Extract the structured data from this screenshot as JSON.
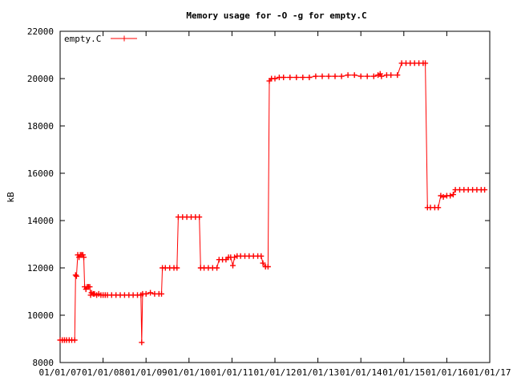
{
  "chart_data": {
    "type": "line",
    "title": "Memory usage for -O -g for empty.C",
    "xlabel": "",
    "ylabel": "kB",
    "ylim": [
      8000,
      22000
    ],
    "yticks": [
      8000,
      10000,
      12000,
      14000,
      16000,
      18000,
      20000,
      22000
    ],
    "xticks": [
      "01/01/07",
      "01/01/08",
      "01/01/09",
      "01/01/10",
      "01/01/11",
      "01/01/12",
      "01/01/13",
      "01/01/14",
      "01/01/15",
      "01/01/16",
      "01/01/17"
    ],
    "xlim_index": [
      0,
      10
    ],
    "grid": false,
    "legend_position": "top-left",
    "series": [
      {
        "name": "empty.C",
        "color": "#ff0000",
        "marker": "plus",
        "points": [
          [
            0.0,
            8950
          ],
          [
            0.05,
            8950
          ],
          [
            0.1,
            8950
          ],
          [
            0.15,
            8950
          ],
          [
            0.21,
            8950
          ],
          [
            0.27,
            8950
          ],
          [
            0.34,
            8950
          ],
          [
            0.36,
            11700
          ],
          [
            0.38,
            11650
          ],
          [
            0.41,
            12550
          ],
          [
            0.44,
            12450
          ],
          [
            0.47,
            12550
          ],
          [
            0.5,
            12550
          ],
          [
            0.53,
            12550
          ],
          [
            0.55,
            12450
          ],
          [
            0.57,
            11200
          ],
          [
            0.6,
            11100
          ],
          [
            0.63,
            11200
          ],
          [
            0.66,
            11200
          ],
          [
            0.69,
            11200
          ],
          [
            0.71,
            10850
          ],
          [
            0.73,
            10950
          ],
          [
            0.77,
            10900
          ],
          [
            0.8,
            10900
          ],
          [
            0.85,
            10850
          ],
          [
            0.9,
            10900
          ],
          [
            0.95,
            10850
          ],
          [
            1.0,
            10850
          ],
          [
            1.05,
            10850
          ],
          [
            1.1,
            10850
          ],
          [
            1.2,
            10850
          ],
          [
            1.3,
            10850
          ],
          [
            1.4,
            10850
          ],
          [
            1.5,
            10850
          ],
          [
            1.6,
            10850
          ],
          [
            1.7,
            10850
          ],
          [
            1.8,
            10850
          ],
          [
            1.88,
            10850
          ],
          [
            1.9,
            8850
          ],
          [
            1.92,
            10900
          ],
          [
            2.0,
            10900
          ],
          [
            2.1,
            10950
          ],
          [
            2.2,
            10900
          ],
          [
            2.3,
            10900
          ],
          [
            2.36,
            10900
          ],
          [
            2.38,
            12000
          ],
          [
            2.45,
            12000
          ],
          [
            2.55,
            12000
          ],
          [
            2.65,
            12000
          ],
          [
            2.72,
            12000
          ],
          [
            2.75,
            14150
          ],
          [
            2.85,
            14150
          ],
          [
            2.95,
            14150
          ],
          [
            3.05,
            14150
          ],
          [
            3.15,
            14150
          ],
          [
            3.24,
            14150
          ],
          [
            3.27,
            12000
          ],
          [
            3.35,
            12000
          ],
          [
            3.45,
            12000
          ],
          [
            3.55,
            12000
          ],
          [
            3.65,
            12000
          ],
          [
            3.7,
            12350
          ],
          [
            3.78,
            12350
          ],
          [
            3.86,
            12350
          ],
          [
            3.92,
            12450
          ],
          [
            3.97,
            12450
          ],
          [
            4.02,
            12100
          ],
          [
            4.06,
            12450
          ],
          [
            4.12,
            12500
          ],
          [
            4.2,
            12500
          ],
          [
            4.3,
            12500
          ],
          [
            4.4,
            12500
          ],
          [
            4.5,
            12500
          ],
          [
            4.6,
            12500
          ],
          [
            4.68,
            12500
          ],
          [
            4.72,
            12200
          ],
          [
            4.78,
            12050
          ],
          [
            4.84,
            12050
          ],
          [
            4.87,
            19900
          ],
          [
            4.92,
            20000
          ],
          [
            5.0,
            20000
          ],
          [
            5.1,
            20050
          ],
          [
            5.2,
            20050
          ],
          [
            5.35,
            20050
          ],
          [
            5.5,
            20050
          ],
          [
            5.65,
            20050
          ],
          [
            5.8,
            20050
          ],
          [
            5.95,
            20100
          ],
          [
            6.1,
            20100
          ],
          [
            6.25,
            20100
          ],
          [
            6.4,
            20100
          ],
          [
            6.55,
            20100
          ],
          [
            6.7,
            20150
          ],
          [
            6.85,
            20150
          ],
          [
            7.0,
            20100
          ],
          [
            7.15,
            20100
          ],
          [
            7.3,
            20100
          ],
          [
            7.4,
            20150
          ],
          [
            7.45,
            20200
          ],
          [
            7.48,
            20100
          ],
          [
            7.6,
            20150
          ],
          [
            7.7,
            20150
          ],
          [
            7.85,
            20150
          ],
          [
            7.95,
            20650
          ],
          [
            8.05,
            20650
          ],
          [
            8.15,
            20650
          ],
          [
            8.25,
            20650
          ],
          [
            8.35,
            20650
          ],
          [
            8.45,
            20650
          ],
          [
            8.5,
            20650
          ],
          [
            8.55,
            14550
          ],
          [
            8.62,
            14550
          ],
          [
            8.72,
            14550
          ],
          [
            8.8,
            14550
          ],
          [
            8.86,
            15050
          ],
          [
            8.92,
            15000
          ],
          [
            9.0,
            15050
          ],
          [
            9.08,
            15050
          ],
          [
            9.15,
            15100
          ],
          [
            9.2,
            15300
          ],
          [
            9.3,
            15300
          ],
          [
            9.4,
            15300
          ],
          [
            9.5,
            15300
          ],
          [
            9.6,
            15300
          ],
          [
            9.7,
            15300
          ],
          [
            9.8,
            15300
          ],
          [
            9.88,
            15300
          ]
        ]
      }
    ]
  }
}
